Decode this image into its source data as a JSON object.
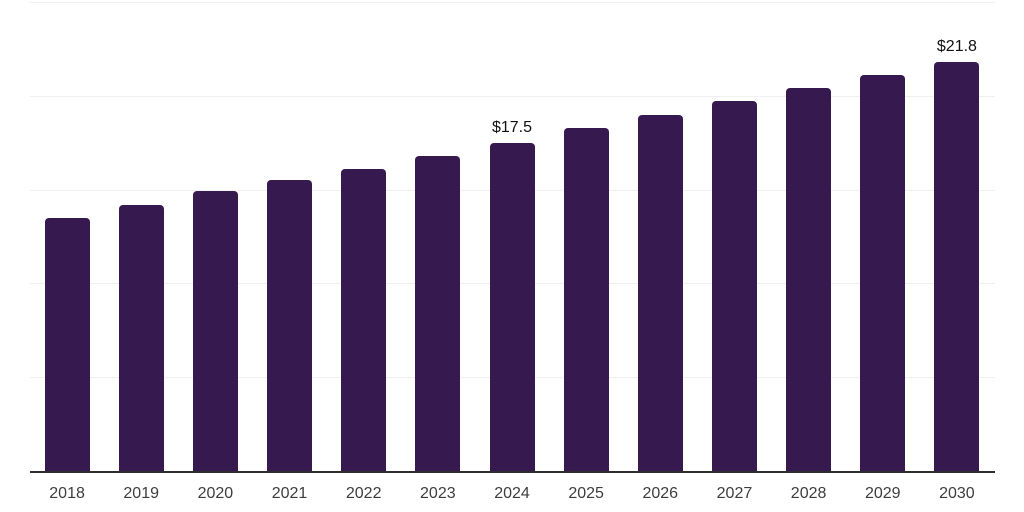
{
  "chart": {
    "background_color": "#ffffff",
    "bar_color": "#36194e",
    "axis_color": "#2e2e2e",
    "gridline_color": "#f0f0f0",
    "value_label_color": "#111111",
    "tick_label_color": "#3d3d3d"
  },
  "chart_data": {
    "type": "bar",
    "title": "",
    "xlabel": "",
    "ylabel": "",
    "categories": [
      "2018",
      "2019",
      "2020",
      "2021",
      "2022",
      "2023",
      "2024",
      "2025",
      "2026",
      "2027",
      "2028",
      "2029",
      "2030"
    ],
    "values": [
      13.5,
      14.2,
      14.9,
      15.5,
      16.1,
      16.8,
      17.5,
      18.3,
      19.0,
      19.7,
      20.4,
      21.1,
      21.8
    ],
    "value_prefix": "$",
    "data_labels": [
      {
        "category": "2024",
        "text": "$17.5"
      },
      {
        "category": "2030",
        "text": "$21.8"
      }
    ],
    "ylim": [
      0,
      25
    ],
    "gridline_values": [
      5,
      10,
      15,
      20,
      25
    ],
    "grid": "horizontal-only",
    "legend": "none",
    "y_axis_tick_labels": "none"
  }
}
